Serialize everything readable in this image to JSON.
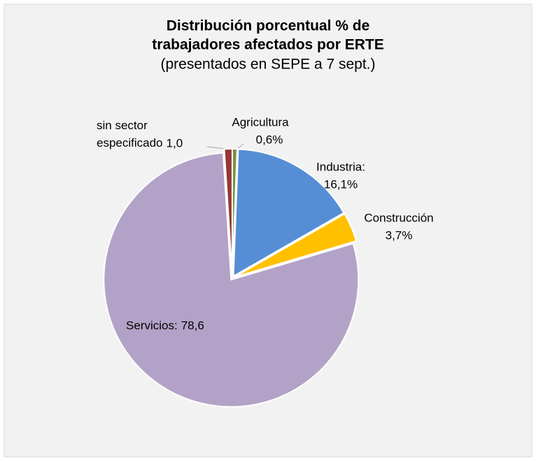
{
  "chart_data": {
    "type": "pie",
    "title": [
      "Distribución porcentual  % de",
      "trabajadores afectados por ERTE"
    ],
    "subtitle": "(presentados en SEPE a 7 sept.)",
    "categories": [
      "Agricultura",
      "Industria:",
      "Construcción",
      "Servicios:",
      "sin sector especificado"
    ],
    "values": [
      0.6,
      16.1,
      3.7,
      78.6,
      1.0
    ],
    "value_labels": [
      "0,6%",
      "16,1%",
      "3,7%",
      "78,6",
      "1,0"
    ],
    "colors": [
      "#77933c",
      "#558ed5",
      "#ffc000",
      "#b3a2c7",
      "#953735"
    ]
  }
}
